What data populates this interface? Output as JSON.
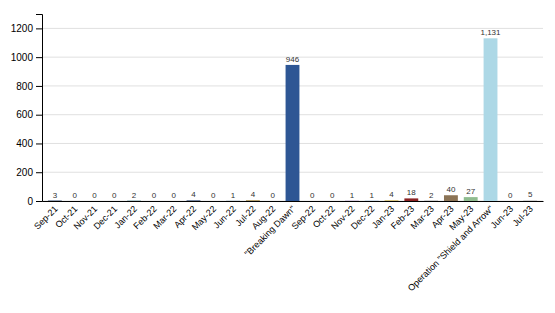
{
  "chart_data": {
    "type": "bar",
    "categories": [
      "Sep-21",
      "Oct-21",
      "Nov-21",
      "Dec-21",
      "Jan-22",
      "Feb-22",
      "Mar-22",
      "Apr-22",
      "May-22",
      "Jun-22",
      "Jul-22",
      "Aug-22",
      "\"Breaking Dawn\"",
      "Sep-22",
      "Oct-22",
      "Nov-22",
      "Dec-22",
      "Jan-23",
      "Feb-23",
      "Mar-23",
      "Apr-23",
      "May-23",
      "Operation \"Shield and Arrow\"",
      "Jun-23",
      "Jul-23"
    ],
    "values": [
      3,
      0,
      0,
      0,
      2,
      0,
      0,
      4,
      0,
      1,
      4,
      0,
      946,
      0,
      0,
      1,
      1,
      4,
      18,
      2,
      40,
      27,
      1131,
      0,
      5
    ],
    "value_labels": [
      "3",
      "0",
      "0",
      "0",
      "2",
      "0",
      "0",
      "4",
      "0",
      "1",
      "4",
      "0",
      "946",
      "0",
      "0",
      "1",
      "1",
      "4",
      "18",
      "2",
      "40",
      "27",
      "1,131",
      "0",
      "5"
    ],
    "colors": [
      "#1F3864",
      "#8B1A1A",
      "#375623",
      "#2E2C7D",
      "#1F6B75",
      "#843C0C",
      "#2E5A1C",
      "#1F3864",
      "#375623",
      "#1B4F72",
      "#8B6914",
      "#C55A11",
      "#2E5694",
      "#8B1A1A",
      "#375623",
      "#4B0082",
      "#2E75B6",
      "#C8A832",
      "#8B2222",
      "#808080",
      "#8B7355",
      "#8FBC8F",
      "#ADD8E6",
      "#D2B48C",
      "#C8C8C8"
    ],
    "ylim": [
      0,
      1300
    ],
    "yticks": [
      0,
      200,
      400,
      600,
      800,
      1000,
      1200
    ],
    "grid": true,
    "data_labels": true
  }
}
